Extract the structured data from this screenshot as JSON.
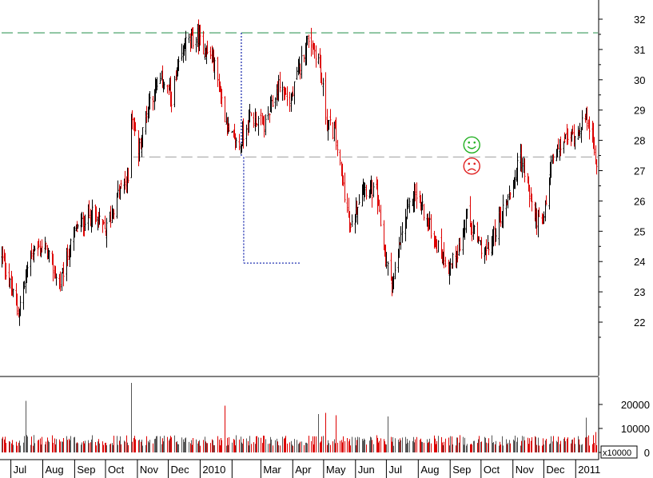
{
  "chart_data": {
    "type": "candlestick",
    "price_axis": {
      "ticks": [
        22,
        23,
        24,
        25,
        26,
        27,
        28,
        29,
        30,
        31,
        32
      ],
      "ylim": [
        21.2,
        32.3
      ]
    },
    "volume_axis": {
      "ticks": [
        0,
        10000,
        20000
      ],
      "tick_labels": [
        "0",
        "10000",
        "20000"
      ],
      "multiplier_label": "x10000",
      "ylim": [
        0,
        30000
      ]
    },
    "x_axis": {
      "labels": [
        "Jul",
        "Aug",
        "Sep",
        "Oct",
        "Nov",
        "Dec",
        "2010",
        "Mar",
        "Apr",
        "May",
        "Jun",
        "Jul",
        "Aug",
        "Sep",
        "Oct",
        "Nov",
        "Dec",
        "2011"
      ],
      "start": "2009-06-22",
      "end": "2011-01-21"
    },
    "price_anchors": [
      [
        "2009-06-22",
        24.2
      ],
      [
        "2009-07-08",
        22.3
      ],
      [
        "2009-07-20",
        24.3
      ],
      [
        "2009-08-03",
        24.5
      ],
      [
        "2009-08-17",
        23.2
      ],
      [
        "2009-09-01",
        25.0
      ],
      [
        "2009-09-17",
        25.6
      ],
      [
        "2009-10-01",
        25.0
      ],
      [
        "2009-10-15",
        26.4
      ],
      [
        "2009-10-23",
        26.7
      ],
      [
        "2009-10-26",
        29.0
      ],
      [
        "2009-11-02",
        27.6
      ],
      [
        "2009-11-12",
        29.3
      ],
      [
        "2009-11-25",
        30.0
      ],
      [
        "2009-12-04",
        29.4
      ],
      [
        "2009-12-17",
        31.2
      ],
      [
        "2009-12-29",
        31.4
      ],
      [
        "2010-01-14",
        30.6
      ],
      [
        "2010-01-29",
        28.2
      ],
      [
        "2010-02-08",
        27.8
      ],
      [
        "2010-02-18",
        28.8
      ],
      [
        "2010-03-05",
        28.5
      ],
      [
        "2010-03-19",
        29.9
      ],
      [
        "2010-03-29",
        29.2
      ],
      [
        "2010-04-08",
        30.5
      ],
      [
        "2010-04-16",
        31.4
      ],
      [
        "2010-04-26",
        30.7
      ],
      [
        "2010-05-04",
        28.6
      ],
      [
        "2010-05-12",
        28.2
      ],
      [
        "2010-05-20",
        26.5
      ],
      [
        "2010-05-27",
        25.0
      ],
      [
        "2010-06-07",
        26.5
      ],
      [
        "2010-06-21",
        26.2
      ],
      [
        "2010-06-30",
        24.0
      ],
      [
        "2010-07-07",
        23.2
      ],
      [
        "2010-07-16",
        25.0
      ],
      [
        "2010-07-28",
        26.3
      ],
      [
        "2010-08-06",
        25.7
      ],
      [
        "2010-08-18",
        24.6
      ],
      [
        "2010-08-31",
        23.8
      ],
      [
        "2010-09-10",
        24.5
      ],
      [
        "2010-09-17",
        25.5
      ],
      [
        "2010-09-28",
        24.6
      ],
      [
        "2010-10-07",
        24.3
      ],
      [
        "2010-10-20",
        25.5
      ],
      [
        "2010-11-01",
        26.6
      ],
      [
        "2010-11-08",
        27.5
      ],
      [
        "2010-11-22",
        25.5
      ],
      [
        "2010-11-30",
        25.2
      ],
      [
        "2010-12-08",
        27.3
      ],
      [
        "2010-12-20",
        28.0
      ],
      [
        "2010-12-31",
        28.2
      ],
      [
        "2011-01-07",
        28.6
      ],
      [
        "2011-01-13",
        28.7
      ],
      [
        "2011-01-18",
        27.8
      ],
      [
        "2011-01-21",
        27.3
      ]
    ],
    "reference_lines": [
      {
        "name": "resistance",
        "value": 31.55,
        "color": "#3a9a5c",
        "style": "dashed",
        "from": "2009-06-22",
        "to": "2011-01-21"
      },
      {
        "name": "support",
        "value": 27.45,
        "color": "#a8a8a8",
        "style": "dashed",
        "from": "2009-10-28",
        "to": "2011-01-21"
      }
    ],
    "annotation_bracket": {
      "date": "2010-02-10",
      "top": 31.55,
      "bottom": 27.45,
      "floor": 23.95,
      "end_date": "2010-04-08",
      "color": "#1f2fb0"
    },
    "markers": [
      {
        "name": "smiley",
        "date": "2010-09-22",
        "value": 27.85,
        "color": "#22b022"
      },
      {
        "name": "frowny",
        "date": "2010-09-22",
        "value": 27.15,
        "color": "#e02020"
      }
    ],
    "series_colors": {
      "up": "#000000",
      "down": "#dd0000"
    },
    "volume_base": 5000,
    "volume_spikes": [
      [
        "2009-07-15",
        21500
      ],
      [
        "2009-10-26",
        29000
      ],
      [
        "2010-01-25",
        19500
      ],
      [
        "2010-04-26",
        16000
      ],
      [
        "2010-05-03",
        16500
      ],
      [
        "2010-05-13",
        15500
      ],
      [
        "2010-07-02",
        15000
      ],
      [
        "2011-01-11",
        14500
      ],
      [
        "2011-01-20",
        8500
      ]
    ]
  }
}
